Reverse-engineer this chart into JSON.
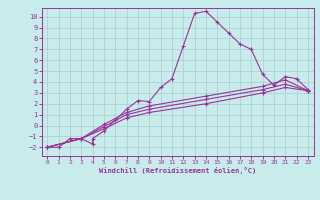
{
  "background_color": "#c8ecec",
  "grid_color": "#b0d0d0",
  "line_color": "#993399",
  "xlabel": "Windchill (Refroidissement éolien,°C)",
  "xlim": [
    -0.5,
    23.5
  ],
  "ylim": [
    -2.8,
    10.8
  ],
  "xticks": [
    0,
    1,
    2,
    3,
    4,
    5,
    6,
    7,
    8,
    9,
    10,
    11,
    12,
    13,
    14,
    15,
    16,
    17,
    18,
    19,
    20,
    21,
    22,
    23
  ],
  "yticks": [
    -2,
    -1,
    0,
    1,
    2,
    3,
    4,
    5,
    6,
    7,
    8,
    9,
    10
  ],
  "lines": [
    {
      "x": [
        0,
        1,
        2,
        3,
        4,
        4,
        5,
        6,
        7,
        8,
        9,
        10,
        11,
        12,
        13,
        14,
        15,
        16,
        17,
        18,
        19,
        20,
        21,
        22,
        23
      ],
      "y": [
        -2,
        -2,
        -1.2,
        -1.2,
        -1.7,
        -1.2,
        -0.5,
        0.5,
        1.5,
        2.3,
        2.2,
        3.5,
        4.3,
        7.3,
        10.3,
        10.5,
        9.5,
        8.5,
        7.5,
        7.0,
        4.7,
        3.7,
        4.5,
        4.3,
        3.3
      ]
    },
    {
      "x": [
        0,
        3,
        5,
        7,
        9,
        14,
        19,
        21,
        23
      ],
      "y": [
        -2,
        -1.2,
        -0.3,
        0.7,
        1.2,
        2.0,
        3.0,
        3.5,
        3.2
      ]
    },
    {
      "x": [
        0,
        3,
        5,
        7,
        9,
        14,
        19,
        21,
        23
      ],
      "y": [
        -2,
        -1.2,
        -0.1,
        1.0,
        1.5,
        2.4,
        3.3,
        3.8,
        3.2
      ]
    },
    {
      "x": [
        0,
        3,
        5,
        7,
        9,
        14,
        19,
        21,
        23
      ],
      "y": [
        -2,
        -1.2,
        0.1,
        1.2,
        1.8,
        2.7,
        3.6,
        4.2,
        3.2
      ]
    }
  ]
}
